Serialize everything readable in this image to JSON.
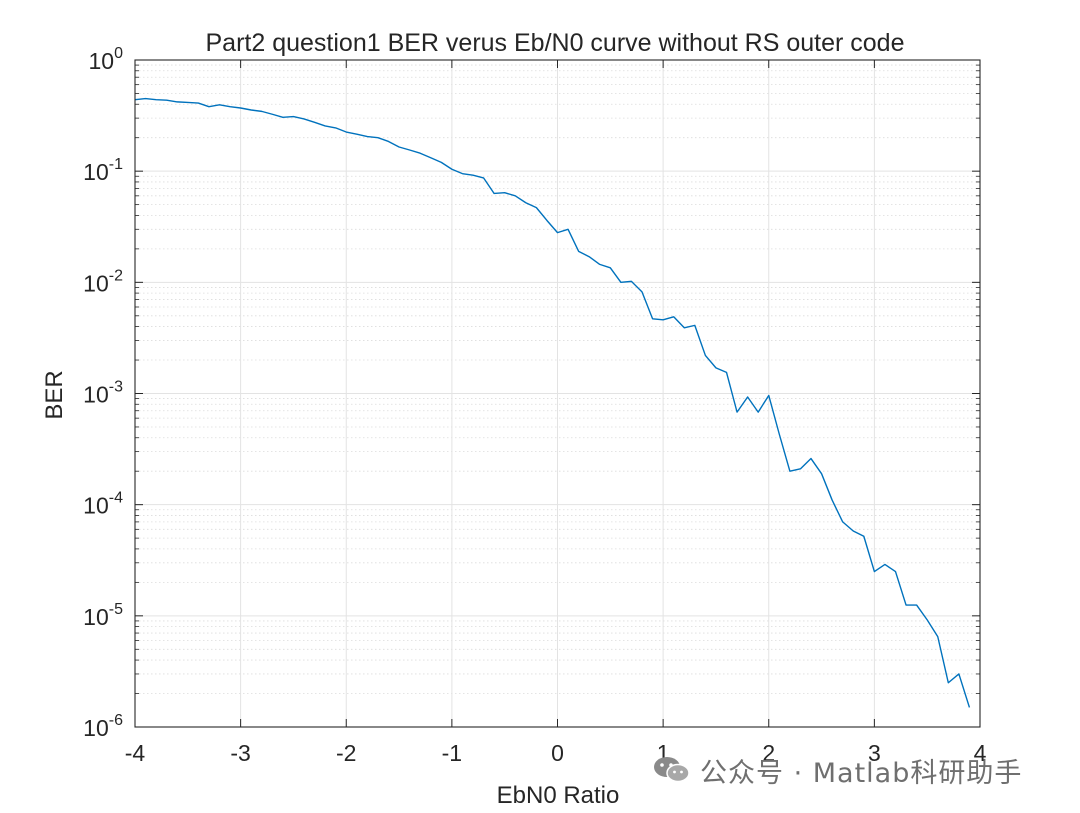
{
  "chart_data": {
    "type": "line",
    "title": "Part2 question1 BER verus Eb/N0 curve without RS outer code",
    "xlabel": "EbN0 Ratio",
    "ylabel": "BER",
    "xlim": [
      -4,
      4
    ],
    "ylim": [
      1e-06,
      1
    ],
    "yscale": "log",
    "grid": true,
    "minor_grid": true,
    "x_ticks": [
      -4,
      -3,
      -2,
      -1,
      0,
      1,
      2,
      3,
      4
    ],
    "x_tick_labels": [
      "-4",
      "-3",
      "-2",
      "-1",
      "0",
      "1",
      "2",
      "3",
      "4"
    ],
    "y_ticks": [
      {
        "value": 1e-06,
        "base": "10",
        "exp": "-6"
      },
      {
        "value": 1e-05,
        "base": "10",
        "exp": "-5"
      },
      {
        "value": 0.0001,
        "base": "10",
        "exp": "-4"
      },
      {
        "value": 0.001,
        "base": "10",
        "exp": "-3"
      },
      {
        "value": 0.01,
        "base": "10",
        "exp": "-2"
      },
      {
        "value": 0.1,
        "base": "10",
        "exp": "-1"
      },
      {
        "value": 1,
        "base": "10",
        "exp": "0"
      }
    ],
    "series": [
      {
        "color": "#0072BD",
        "x": [
          -4,
          -3.9,
          -3.8,
          -3.7,
          -3.6,
          -3.5,
          -3.4,
          -3.3,
          -3.2,
          -3.1,
          -3.0,
          -2.9,
          -2.8,
          -2.7,
          -2.6,
          -2.5,
          -2.4,
          -2.3,
          -2.2,
          -2.1,
          -2.0,
          -1.9,
          -1.8,
          -1.7,
          -1.6,
          -1.5,
          -1.4,
          -1.3,
          -1.2,
          -1.1,
          -1.0,
          -0.9,
          -0.8,
          -0.7,
          -0.6,
          -0.5,
          -0.4,
          -0.3,
          -0.2,
          -0.1,
          0.0,
          0.1,
          0.2,
          0.3,
          0.4,
          0.5,
          0.6,
          0.7,
          0.8,
          0.9,
          1.0,
          1.1,
          1.2,
          1.3,
          1.4,
          1.5,
          1.6,
          1.7,
          1.8,
          1.9,
          2.0,
          2.1,
          2.2,
          2.3,
          2.4,
          2.5,
          2.6,
          2.7,
          2.8,
          2.9,
          3.0,
          3.1,
          3.2,
          3.3,
          3.4,
          3.5,
          3.6,
          3.7,
          3.8,
          3.9
        ],
        "y": [
          0.44,
          0.45,
          0.44,
          0.435,
          0.42,
          0.415,
          0.41,
          0.38,
          0.395,
          0.38,
          0.37,
          0.355,
          0.345,
          0.325,
          0.305,
          0.31,
          0.295,
          0.275,
          0.255,
          0.245,
          0.225,
          0.215,
          0.205,
          0.2,
          0.185,
          0.165,
          0.155,
          0.145,
          0.132,
          0.12,
          0.104,
          0.095,
          0.092,
          0.087,
          0.063,
          0.064,
          0.06,
          0.052,
          0.047,
          0.036,
          0.028,
          0.03,
          0.019,
          0.017,
          0.0145,
          0.0135,
          0.01,
          0.0102,
          0.0082,
          0.0047,
          0.0046,
          0.0049,
          0.0039,
          0.0041,
          0.0022,
          0.0017,
          0.00155,
          0.00068,
          0.00093,
          0.00068,
          0.00096,
          0.00043,
          0.0002,
          0.00021,
          0.00026,
          0.00019,
          0.00011,
          7e-05,
          5.8e-05,
          5.2e-05,
          2.5e-05,
          2.9e-05,
          2.5e-05,
          1.25e-05,
          1.25e-05,
          9.2e-06,
          6.5e-06,
          2.5e-06,
          3e-06,
          1.5e-06
        ]
      }
    ]
  },
  "watermark": {
    "icon": "wechat-icon",
    "text": "公众号 · Matlab科研助手"
  }
}
